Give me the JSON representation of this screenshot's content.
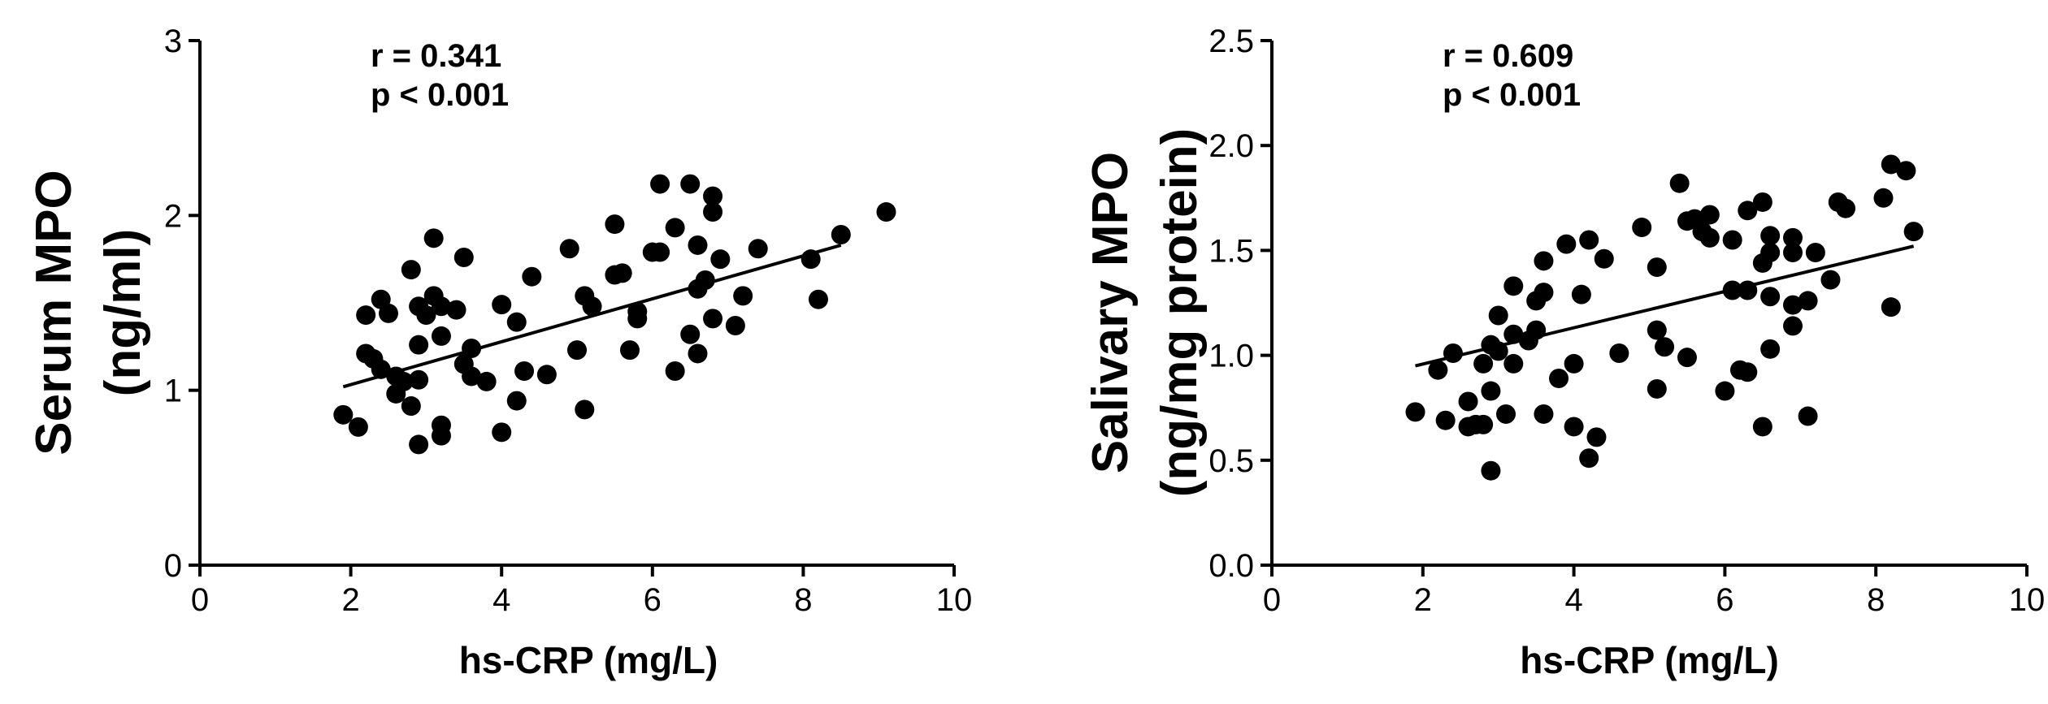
{
  "chart_data": [
    {
      "type": "scatter",
      "xlabel": "hs-CRP (mg/L)",
      "ylabel_lines": [
        "Serum MPO",
        "(ng/ml)"
      ],
      "xlim": [
        0,
        10
      ],
      "ylim": [
        0,
        3
      ],
      "x_ticks": [
        0,
        2,
        4,
        6,
        8,
        10
      ],
      "y_ticks": [
        0,
        1,
        2,
        3
      ],
      "y_tick_labels": [
        "0",
        "1",
        "2",
        "3"
      ],
      "x_tick_labels": [
        "0",
        "2",
        "4",
        "6",
        "8",
        "10"
      ],
      "grid": false,
      "annotations": [
        "r = 0.341",
        "p < 0.001"
      ],
      "trendline": {
        "x": [
          1.9,
          8.5
        ],
        "y": [
          1.02,
          1.83
        ]
      },
      "points": [
        [
          1.9,
          0.86
        ],
        [
          2.1,
          0.79
        ],
        [
          2.2,
          1.43
        ],
        [
          2.2,
          1.21
        ],
        [
          2.3,
          1.18
        ],
        [
          2.4,
          1.52
        ],
        [
          2.4,
          1.12
        ],
        [
          2.5,
          1.44
        ],
        [
          2.6,
          1.08
        ],
        [
          2.6,
          0.98
        ],
        [
          2.7,
          1.05
        ],
        [
          2.8,
          1.69
        ],
        [
          2.8,
          0.91
        ],
        [
          2.9,
          1.48
        ],
        [
          2.9,
          1.26
        ],
        [
          2.9,
          1.06
        ],
        [
          2.9,
          0.69
        ],
        [
          3.0,
          1.43
        ],
        [
          3.1,
          1.87
        ],
        [
          3.1,
          1.54
        ],
        [
          3.2,
          1.48
        ],
        [
          3.2,
          1.31
        ],
        [
          3.2,
          0.8
        ],
        [
          3.2,
          0.74
        ],
        [
          3.4,
          1.46
        ],
        [
          3.5,
          1.76
        ],
        [
          3.5,
          1.15
        ],
        [
          3.6,
          1.24
        ],
        [
          3.6,
          1.08
        ],
        [
          3.8,
          1.05
        ],
        [
          4.0,
          1.49
        ],
        [
          4.0,
          0.76
        ],
        [
          4.2,
          1.39
        ],
        [
          4.2,
          0.94
        ],
        [
          4.3,
          1.11
        ],
        [
          4.4,
          1.65
        ],
        [
          4.6,
          1.09
        ],
        [
          4.9,
          1.81
        ],
        [
          5.0,
          1.23
        ],
        [
          5.1,
          1.54
        ],
        [
          5.1,
          0.89
        ],
        [
          5.2,
          1.48
        ],
        [
          5.5,
          1.95
        ],
        [
          5.5,
          1.66
        ],
        [
          5.6,
          1.67
        ],
        [
          5.7,
          1.23
        ],
        [
          5.8,
          1.45
        ],
        [
          5.8,
          1.41
        ],
        [
          6.0,
          1.79
        ],
        [
          6.1,
          2.18
        ],
        [
          6.1,
          1.79
        ],
        [
          6.3,
          1.11
        ],
        [
          6.3,
          1.93
        ],
        [
          6.5,
          2.18
        ],
        [
          6.5,
          1.32
        ],
        [
          6.6,
          1.83
        ],
        [
          6.6,
          1.58
        ],
        [
          6.6,
          1.21
        ],
        [
          6.7,
          1.63
        ],
        [
          6.8,
          2.11
        ],
        [
          6.8,
          2.02
        ],
        [
          6.8,
          1.41
        ],
        [
          6.9,
          1.75
        ],
        [
          7.1,
          1.37
        ],
        [
          7.2,
          1.54
        ],
        [
          7.4,
          1.81
        ],
        [
          8.1,
          1.75
        ],
        [
          8.2,
          1.52
        ],
        [
          8.5,
          1.89
        ],
        [
          9.1,
          2.02
        ]
      ]
    },
    {
      "type": "scatter",
      "xlabel": "hs-CRP (mg/L)",
      "ylabel_lines": [
        "Salivary MPO",
        "(ng/mg protein)"
      ],
      "xlim": [
        0,
        10
      ],
      "ylim": [
        0,
        2.5
      ],
      "x_ticks": [
        0,
        2,
        4,
        6,
        8,
        10
      ],
      "y_ticks": [
        0,
        0.5,
        1.0,
        1.5,
        2.0,
        2.5
      ],
      "y_tick_labels": [
        "0.0",
        "0.5",
        "1.0",
        "1.5",
        "2.0",
        "2.5"
      ],
      "x_tick_labels": [
        "0",
        "2",
        "4",
        "6",
        "8",
        "10"
      ],
      "grid": false,
      "annotations": [
        "r = 0.609",
        "p < 0.001"
      ],
      "trendline": {
        "x": [
          1.9,
          8.5
        ],
        "y": [
          0.95,
          1.52
        ]
      },
      "points": [
        [
          1.9,
          0.73
        ],
        [
          2.2,
          0.93
        ],
        [
          2.3,
          0.69
        ],
        [
          2.4,
          1.01
        ],
        [
          2.6,
          0.78
        ],
        [
          2.6,
          0.66
        ],
        [
          2.7,
          0.67
        ],
        [
          2.8,
          0.96
        ],
        [
          2.8,
          0.67
        ],
        [
          2.9,
          1.05
        ],
        [
          2.9,
          0.83
        ],
        [
          2.9,
          0.45
        ],
        [
          3.0,
          1.19
        ],
        [
          3.0,
          1.02
        ],
        [
          3.1,
          0.72
        ],
        [
          3.2,
          1.33
        ],
        [
          3.2,
          1.1
        ],
        [
          3.2,
          0.96
        ],
        [
          3.4,
          1.07
        ],
        [
          3.5,
          1.26
        ],
        [
          3.5,
          1.12
        ],
        [
          3.6,
          1.45
        ],
        [
          3.6,
          1.3
        ],
        [
          3.6,
          0.72
        ],
        [
          3.8,
          0.89
        ],
        [
          3.9,
          1.53
        ],
        [
          4.0,
          0.96
        ],
        [
          4.0,
          0.66
        ],
        [
          4.1,
          1.29
        ],
        [
          4.2,
          1.55
        ],
        [
          4.2,
          0.51
        ],
        [
          4.3,
          0.61
        ],
        [
          4.4,
          1.46
        ],
        [
          4.6,
          1.01
        ],
        [
          4.9,
          1.61
        ],
        [
          5.1,
          1.42
        ],
        [
          5.1,
          1.12
        ],
        [
          5.1,
          0.84
        ],
        [
          5.2,
          1.04
        ],
        [
          5.4,
          1.82
        ],
        [
          5.5,
          1.64
        ],
        [
          5.5,
          0.99
        ],
        [
          5.6,
          1.65
        ],
        [
          5.7,
          1.59
        ],
        [
          5.8,
          1.67
        ],
        [
          5.8,
          1.56
        ],
        [
          6.0,
          0.83
        ],
        [
          6.1,
          1.55
        ],
        [
          6.1,
          1.31
        ],
        [
          6.2,
          0.93
        ],
        [
          6.3,
          1.69
        ],
        [
          6.3,
          1.31
        ],
        [
          6.3,
          0.92
        ],
        [
          6.5,
          1.73
        ],
        [
          6.5,
          1.44
        ],
        [
          6.5,
          0.66
        ],
        [
          6.6,
          1.57
        ],
        [
          6.6,
          1.49
        ],
        [
          6.6,
          1.28
        ],
        [
          6.6,
          1.03
        ],
        [
          6.9,
          1.56
        ],
        [
          6.9,
          1.49
        ],
        [
          6.9,
          1.24
        ],
        [
          6.9,
          1.14
        ],
        [
          7.1,
          1.26
        ],
        [
          7.1,
          0.71
        ],
        [
          7.2,
          1.49
        ],
        [
          7.4,
          1.36
        ],
        [
          7.5,
          1.73
        ],
        [
          7.6,
          1.7
        ],
        [
          8.1,
          1.75
        ],
        [
          8.2,
          1.91
        ],
        [
          8.2,
          1.23
        ],
        [
          8.4,
          1.88
        ],
        [
          8.5,
          1.59
        ]
      ]
    }
  ]
}
